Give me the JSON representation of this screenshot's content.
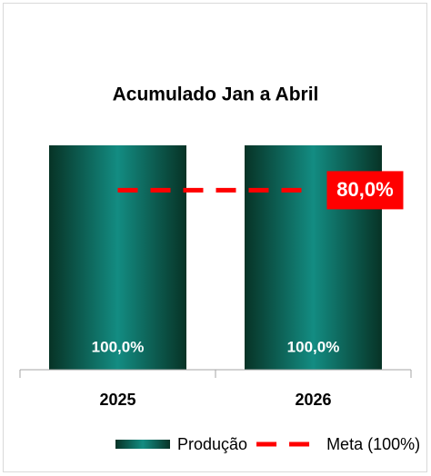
{
  "chart_data": {
    "type": "bar",
    "title": "Acumulado Jan a Abril",
    "categories": [
      "2025",
      "2026"
    ],
    "ylim": [
      0,
      100
    ],
    "series": [
      {
        "name": "Produção",
        "type": "bar",
        "color": "#0f7a70",
        "values": [
          100,
          100
        ],
        "value_labels": [
          "100,0%",
          "100,0%"
        ]
      },
      {
        "name": "Meta (100%)",
        "type": "line",
        "color": "#ff0000",
        "values": [
          80,
          80
        ],
        "value_labels": [
          null,
          "80,0%"
        ]
      }
    ],
    "legend": "bottom"
  }
}
